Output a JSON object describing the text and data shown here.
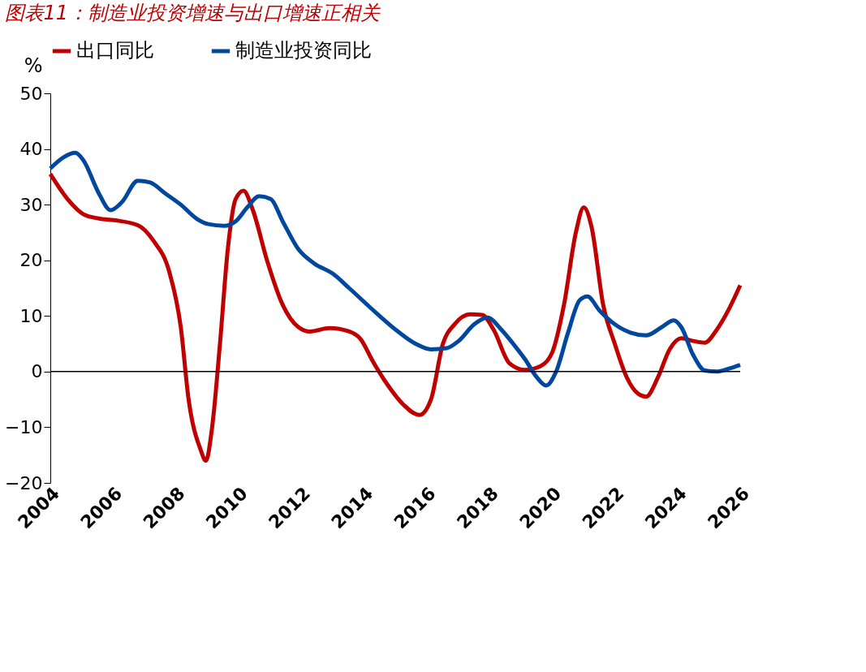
{
  "chart_data": {
    "type": "line",
    "title": "图表11：制造业投资增速与出口增速正相关",
    "ylabel": "%",
    "xlim": [
      2004,
      2026
    ],
    "xticks": [
      2004,
      2006,
      2008,
      2010,
      2012,
      2014,
      2016,
      2018,
      2020,
      2022,
      2024,
      2026
    ],
    "ylim": [
      -20,
      50
    ],
    "yticks": [
      -20,
      -10,
      0,
      10,
      20,
      30,
      40,
      50
    ],
    "grid": false,
    "legend": "top",
    "line_style": "solid",
    "marker": "none",
    "ref_lines": [
      {
        "axis": "y",
        "value": 0,
        "color": "#000000"
      }
    ],
    "series": [
      {
        "name": "出口同比",
        "color": "#c00000",
        "x": [
          2004.0,
          2004.55,
          2005.05,
          2005.55,
          2006.04,
          2006.79,
          2007.29,
          2007.79,
          2008.16,
          2008.41,
          2008.79,
          2008.96,
          2009.16,
          2009.41,
          2009.66,
          2009.91,
          2010.16,
          2010.46,
          2010.91,
          2011.41,
          2011.91,
          2012.28,
          2012.9,
          2013.53,
          2013.9,
          2014.27,
          2014.77,
          2015.27,
          2015.77,
          2016.14,
          2016.52,
          2016.89,
          2017.39,
          2017.77,
          2018.14,
          2018.64,
          2019.14,
          2019.64,
          2020.01,
          2020.38,
          2020.76,
          2021.01,
          2021.26,
          2021.63,
          2022.0,
          2022.38,
          2022.75,
          2023.0,
          2023.38,
          2023.75,
          2024.12,
          2024.5,
          2024.87,
          2025.25,
          2025.62,
          2026.0
        ],
        "values": [
          35.5,
          31,
          28.3,
          27.5,
          27.2,
          26.3,
          23.5,
          18,
          8,
          -5,
          -14,
          -16,
          -10,
          5,
          22,
          31,
          32.5,
          29,
          20,
          12,
          8,
          7.2,
          7.8,
          7.2,
          5.8,
          2,
          -2.5,
          -6,
          -7.8,
          -5,
          5,
          8.5,
          10.3,
          10.2,
          7.5,
          1.5,
          0.3,
          1,
          3.5,
          12,
          25,
          29.5,
          26,
          12,
          5,
          -1,
          -4,
          -4.5,
          -1,
          4,
          6,
          5.5,
          5.2,
          7.5,
          11,
          15.5
        ]
      },
      {
        "name": "制造业投资同比",
        "color": "#00479d",
        "x": [
          2004.0,
          2004.42,
          2004.8,
          2005.05,
          2005.55,
          2005.92,
          2006.29,
          2006.79,
          2007.17,
          2007.67,
          2008.16,
          2008.66,
          2009.04,
          2009.54,
          2009.91,
          2010.28,
          2010.66,
          2011.03,
          2011.41,
          2011.91,
          2012.4,
          2013.03,
          2013.53,
          2014.4,
          2015.02,
          2015.65,
          2016.14,
          2016.64,
          2017.02,
          2017.52,
          2017.94,
          2018.39,
          2018.76,
          2019.14,
          2019.51,
          2019.81,
          2020.13,
          2020.51,
          2020.88,
          2021.13,
          2021.51,
          2022.0,
          2022.5,
          2023.0,
          2023.5,
          2023.88,
          2024.12,
          2024.5,
          2024.87,
          2025.25,
          2025.62,
          2026.0
        ],
        "values": [
          36.5,
          38.5,
          39.3,
          38,
          32,
          29,
          30.5,
          34.3,
          34,
          32,
          30,
          27.5,
          26.5,
          26.2,
          27,
          29.5,
          31.5,
          31,
          27,
          22,
          19.5,
          17.5,
          15,
          10.5,
          7.5,
          5,
          4,
          4.2,
          5.5,
          8.5,
          9.7,
          7.5,
          5,
          2.2,
          -1,
          -2.5,
          0,
          7,
          12.8,
          13.5,
          11,
          8.5,
          7,
          6.5,
          8,
          9.2,
          8,
          3,
          0.2,
          0,
          0.5,
          1.2
        ]
      }
    ]
  }
}
